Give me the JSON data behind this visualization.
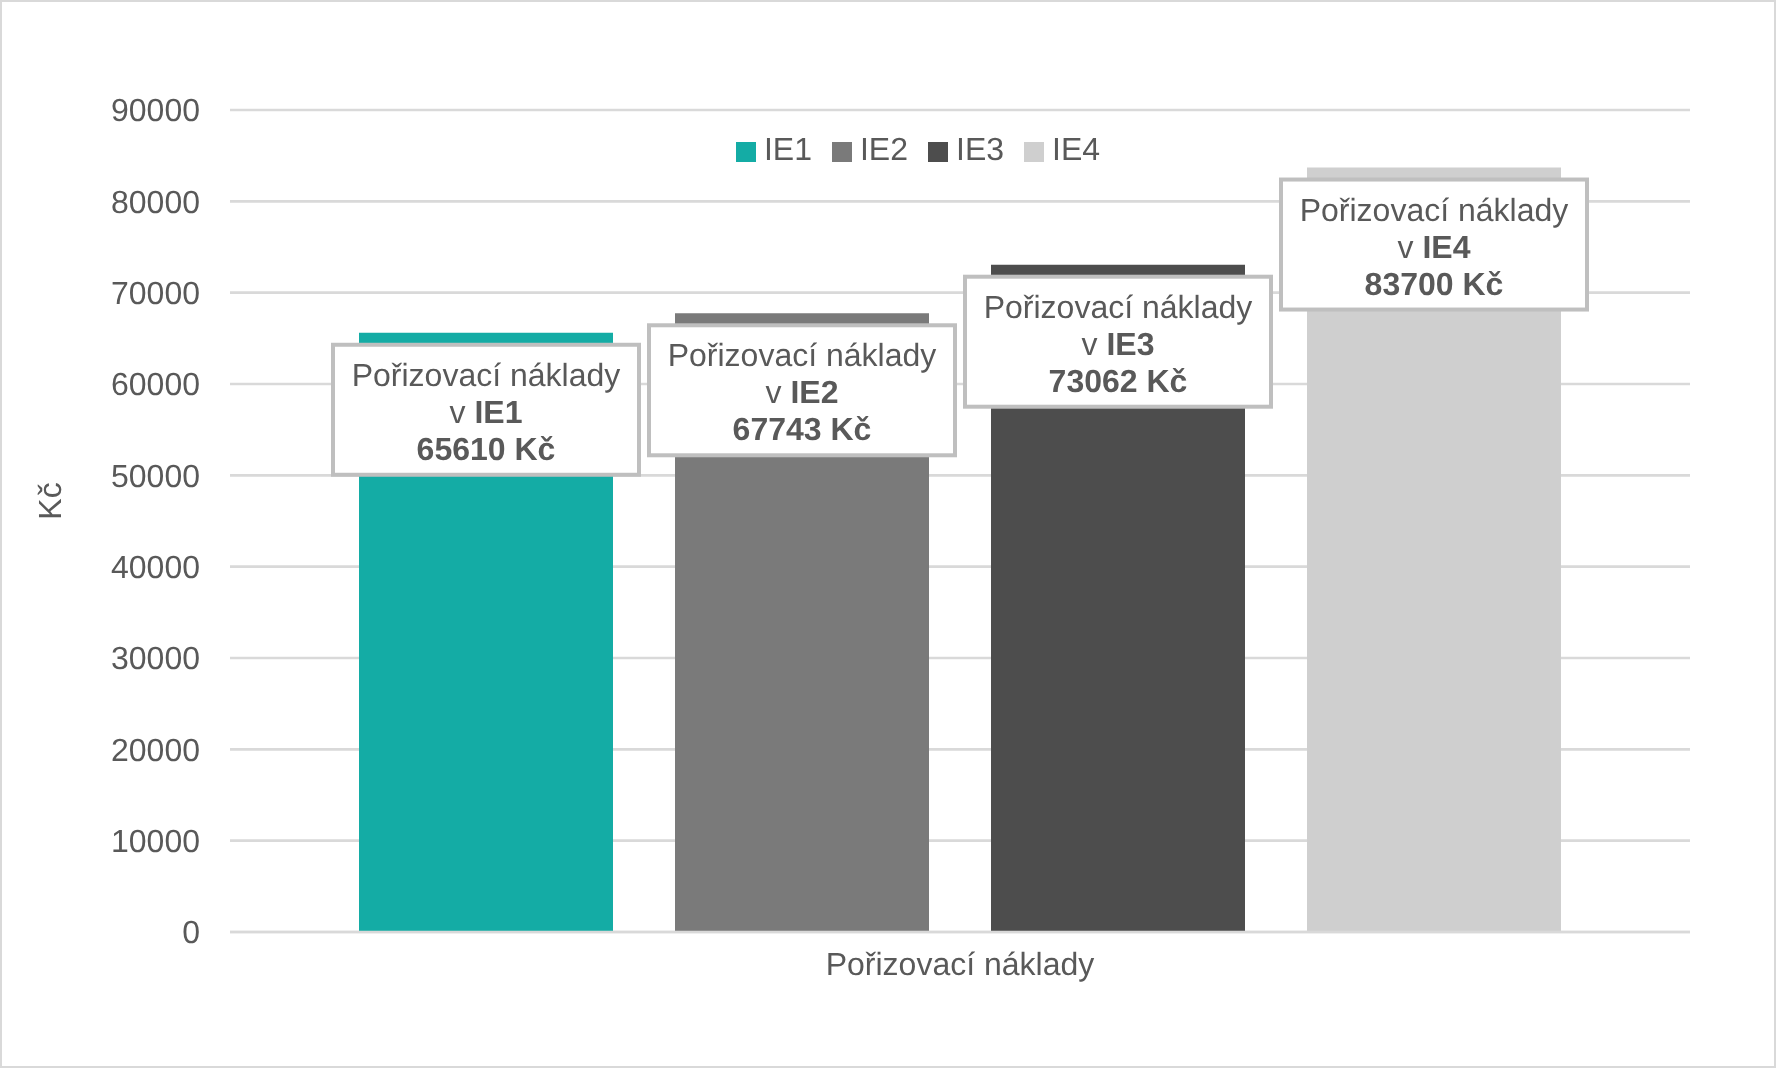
{
  "chart_data": {
    "type": "bar",
    "categories": [
      null,
      null,
      null,
      null
    ],
    "xlabel": "Pořizovací náklady",
    "ylabel": "Kč",
    "stacked": true,
    "series": [
      {
        "name": "IE1",
        "color": "#14aca5",
        "values": [
          65610,
          null,
          null,
          null
        ],
        "value_labels": [
          "Pořizovací náklady\nv IE1\n65610 Kč",
          null,
          null,
          null
        ]
      },
      {
        "name": "IE2",
        "color": "#7a7a7a",
        "values": [
          null,
          67743,
          null,
          null
        ],
        "value_labels": [
          null,
          "Pořizovací náklady\nv IE2\n67743 Kč",
          null,
          null
        ]
      },
      {
        "name": "IE3",
        "color": "#4d4d4d",
        "values": [
          null,
          null,
          73062,
          null
        ],
        "value_labels": [
          null,
          null,
          "Pořizovací náklady\nv IE3\n73062 Kč",
          null
        ]
      },
      {
        "name": "IE4",
        "color": "#cfcfcf",
        "values": [
          null,
          null,
          null,
          83700
        ],
        "value_labels": [
          null,
          null,
          null,
          "Pořizovací náklady\nv IE4\n83700 Kč"
        ]
      }
    ],
    "ylim": [
      0,
      90000
    ],
    "yticks": [
      0,
      10000,
      20000,
      30000,
      40000,
      50000,
      60000,
      70000,
      80000,
      90000
    ],
    "grid": "y",
    "legend": "top"
  }
}
